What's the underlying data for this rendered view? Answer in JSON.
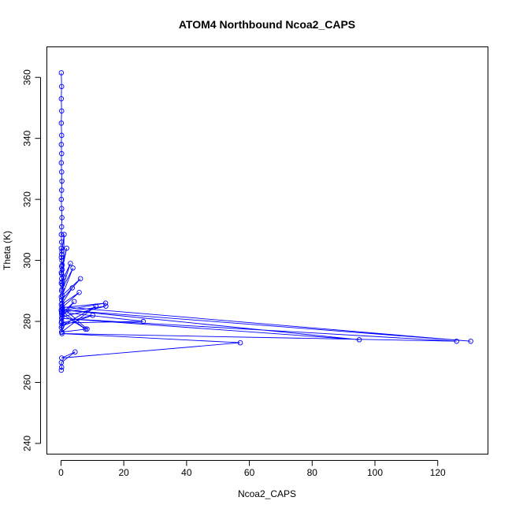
{
  "chart_data": {
    "type": "line",
    "title": "ATOM4 Northbound Ncoa2_CAPS",
    "xlabel": "Ncoa2_CAPS",
    "ylabel": "Theta (K)",
    "xlim": [
      -4.5,
      136
    ],
    "ylim": [
      236.5,
      370
    ],
    "xticks": [
      0,
      20,
      40,
      60,
      80,
      100,
      120
    ],
    "yticks": [
      240,
      260,
      280,
      300,
      320,
      340,
      360
    ],
    "grid": false,
    "series": [
      {
        "color": "#0000ff",
        "marker": "open-circle",
        "x": [
          0.1,
          0.2,
          0.1,
          0.2,
          0.1,
          0.2,
          0.1,
          0.2,
          0.1,
          0.2,
          0.3,
          0.2,
          0.1,
          0.2,
          0.3,
          0.2,
          0.1,
          0.2,
          0.1,
          0.2,
          0.3,
          0.2,
          0.1,
          0.2,
          0.4,
          0.2,
          0.1,
          0.3,
          0.5,
          0.3,
          0.2,
          0.1,
          0.3,
          1.0,
          0.3,
          0.1,
          0.4,
          1.8,
          0.4,
          0.2,
          0.9,
          0.3,
          0.1,
          3.0,
          0.3,
          3.8,
          0.4,
          6.2,
          0.2,
          3.6,
          0.1,
          5.8,
          0.3,
          14.2,
          0.1,
          7.8,
          0.2,
          4.2,
          0.3,
          14.3,
          0.2,
          26.2,
          0.1,
          10.1,
          0.3,
          11.1,
          0.2,
          8.3,
          0.3,
          130.5,
          0.1,
          95.0,
          0.2,
          126.0,
          0.3,
          57.1,
          0.2,
          4.5,
          0.1,
          0.2,
          0.1
        ],
        "y": [
          361.5,
          357.0,
          353.0,
          349.0,
          345.0,
          341.0,
          338.0,
          335.0,
          332.0,
          329.0,
          326.0,
          323.0,
          320.0,
          317.0,
          314.0,
          311.0,
          308.5,
          306.0,
          304.0,
          302.0,
          300.0,
          298.0,
          296.0,
          294.0,
          292.0,
          290.0,
          288.0,
          286.0,
          284.0,
          282.0,
          280.0,
          278.0,
          276.5,
          308.5,
          303.0,
          301.0,
          298.5,
          304.0,
          297.0,
          295.5,
          294.5,
          293.0,
          292.5,
          299.0,
          290.5,
          297.5,
          288.5,
          294.0,
          287.0,
          291.0,
          285.5,
          289.5,
          284.5,
          286.0,
          283.5,
          277.5,
          282.5,
          286.5,
          281.5,
          285.0,
          283.0,
          280.0,
          279.5,
          282.0,
          278.5,
          285.0,
          276.5,
          277.5,
          284.8,
          273.5,
          283.8,
          274.0,
          281.0,
          273.5,
          276.0,
          273.0,
          268.0,
          270.0,
          266.5,
          265.0,
          264.0
        ]
      }
    ]
  }
}
